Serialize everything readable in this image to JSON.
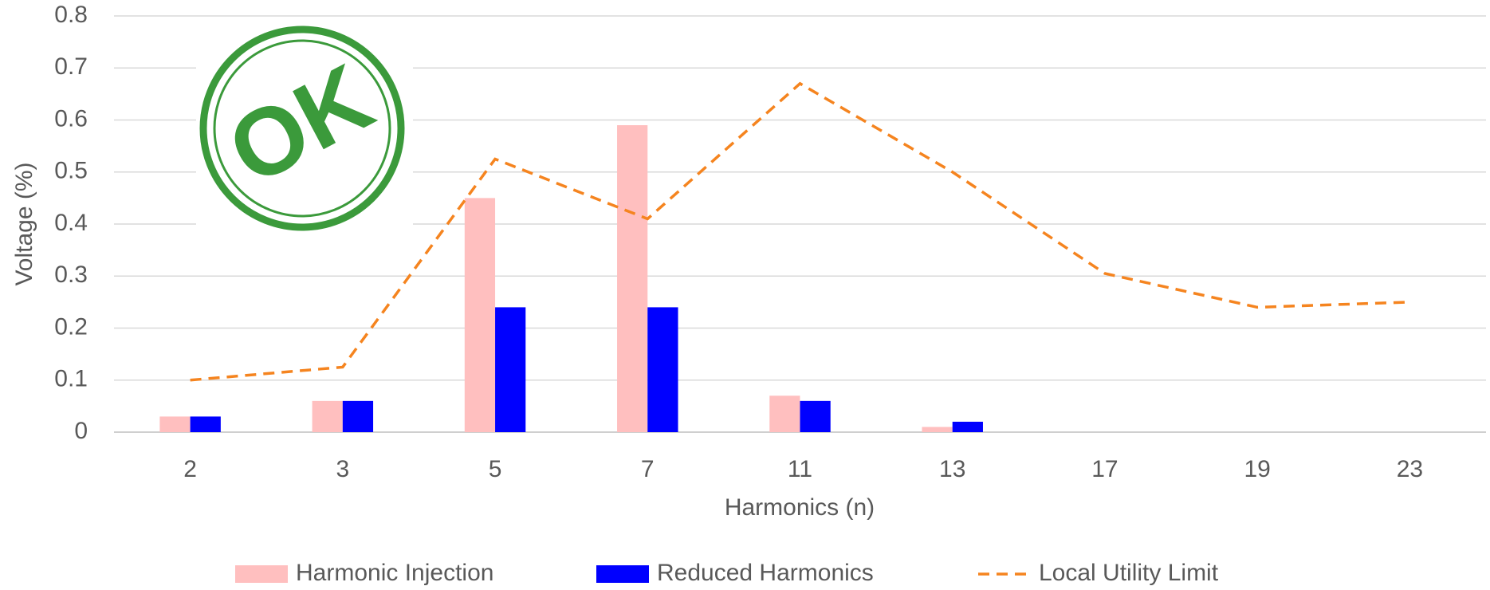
{
  "chart_data": {
    "type": "bar-line",
    "annotation": "OK",
    "x_label": "Harmonics (n)",
    "y_label": "Voltage (%)",
    "categories": [
      "2",
      "3",
      "5",
      "7",
      "11",
      "13",
      "17",
      "19",
      "23"
    ],
    "series": [
      {
        "name": "Harmonic Injection",
        "type": "bar",
        "color": "#ffbfbf",
        "values": [
          0.03,
          0.06,
          0.45,
          0.59,
          0.07,
          0.01,
          null,
          null,
          null
        ]
      },
      {
        "name": "Reduced Harmonics",
        "type": "bar",
        "color": "#0000ff",
        "values": [
          0.03,
          0.06,
          0.24,
          0.24,
          0.06,
          0.02,
          null,
          null,
          null
        ]
      },
      {
        "name": "Local Utility Limit",
        "type": "line",
        "dashed": true,
        "color": "#f5841f",
        "values": [
          0.1,
          0.125,
          0.525,
          0.41,
          0.67,
          0.5,
          0.305,
          0.24,
          0.25
        ]
      }
    ],
    "ylim": [
      0,
      0.8
    ],
    "yticks": [
      0,
      0.1,
      0.2,
      0.3,
      0.4,
      0.5,
      0.6,
      0.7,
      0.8
    ],
    "grid": true,
    "legend": "bottom"
  }
}
